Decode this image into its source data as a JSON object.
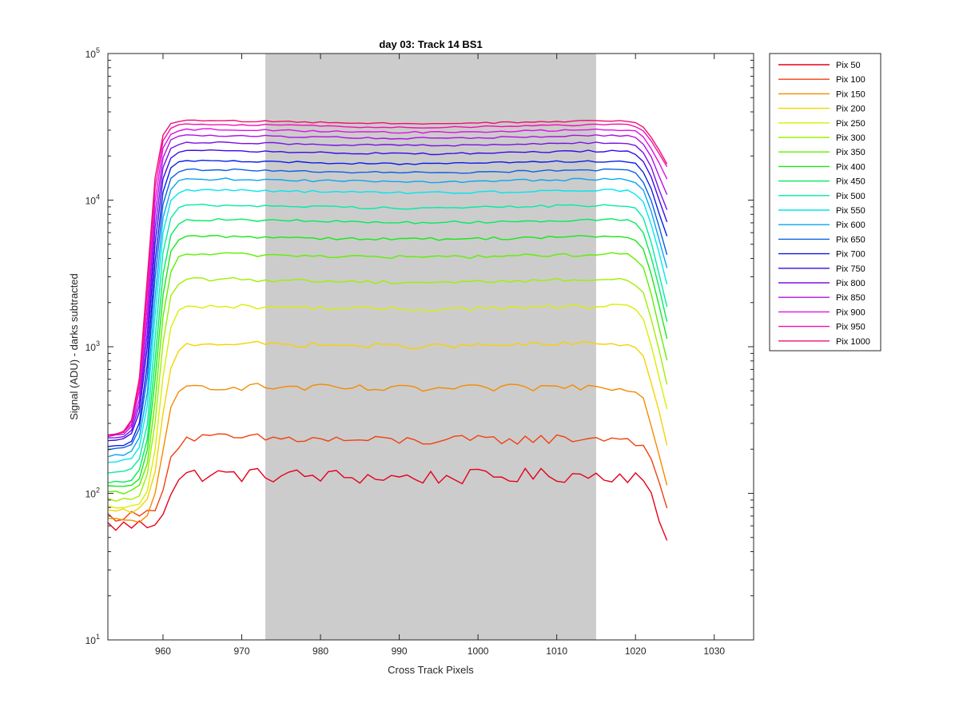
{
  "chart_data": {
    "type": "line",
    "title": "day 03: Track 14  BS1",
    "xlabel": "Cross Track Pixels",
    "ylabel": "Signal (ADU) - darks subtracted",
    "xlim": [
      953,
      1035
    ],
    "ylim": [
      10,
      100000
    ],
    "yscale": "log",
    "grid": false,
    "legend_position": "outside-right",
    "x_ticks": [
      960,
      970,
      980,
      990,
      1000,
      1010,
      1020,
      1030
    ],
    "y_ticks": [
      {
        "value": 10,
        "base": "10",
        "exp": "1"
      },
      {
        "value": 100,
        "base": "10",
        "exp": "2"
      },
      {
        "value": 1000,
        "base": "10",
        "exp": "3"
      },
      {
        "value": 10000,
        "base": "10",
        "exp": "4"
      },
      {
        "value": 100000,
        "base": "10",
        "exp": "5"
      }
    ],
    "shaded_region": {
      "x": [
        973,
        1015
      ],
      "color": "#cccccc"
    },
    "x": [
      953,
      954,
      955,
      956,
      957,
      958,
      959,
      960,
      961,
      962,
      963,
      964,
      965,
      966,
      967,
      968,
      969,
      970,
      971,
      972,
      973,
      974,
      975,
      976,
      977,
      978,
      979,
      980,
      981,
      982,
      983,
      984,
      985,
      986,
      987,
      988,
      989,
      990,
      991,
      992,
      993,
      994,
      995,
      996,
      997,
      998,
      999,
      1000,
      1001,
      1002,
      1003,
      1004,
      1005,
      1006,
      1007,
      1008,
      1009,
      1010,
      1011,
      1012,
      1013,
      1014,
      1015,
      1016,
      1017,
      1018,
      1019,
      1020,
      1021,
      1022,
      1023,
      1024
    ],
    "series": [
      {
        "name": "Pix 50",
        "color": "#e6001a",
        "start": 60,
        "rise_mid": 960.5,
        "plateau": 135,
        "end": 48,
        "jitter": 0.12
      },
      {
        "name": "Pix 100",
        "color": "#f24010",
        "start": 70,
        "rise_mid": 960.3,
        "plateau": 240,
        "end": 80,
        "jitter": 0.08
      },
      {
        "name": "Pix 150",
        "color": "#f58a00",
        "start": 65,
        "rise_mid": 960.0,
        "plateau": 540,
        "end": 115,
        "jitter": 0.06
      },
      {
        "name": "Pix 200",
        "color": "#f5d200",
        "start": 75,
        "rise_mid": 959.8,
        "plateau": 1060,
        "end": 215,
        "jitter": 0.04
      },
      {
        "name": "Pix 250",
        "color": "#d7f000",
        "start": 80,
        "rise_mid": 959.6,
        "plateau": 1900,
        "end": 380,
        "jitter": 0.035
      },
      {
        "name": "Pix 300",
        "color": "#9ef000",
        "start": 90,
        "rise_mid": 959.4,
        "plateau": 2900,
        "end": 560,
        "jitter": 0.03
      },
      {
        "name": "Pix 350",
        "color": "#5ef000",
        "start": 100,
        "rise_mid": 959.3,
        "plateau": 4300,
        "end": 820,
        "jitter": 0.03
      },
      {
        "name": "Pix 400",
        "color": "#18e818",
        "start": 110,
        "rise_mid": 959.2,
        "plateau": 5700,
        "end": 1150,
        "jitter": 0.025
      },
      {
        "name": "Pix 450",
        "color": "#00ec5e",
        "start": 120,
        "rise_mid": 959.1,
        "plateau": 7400,
        "end": 1500,
        "jitter": 0.02
      },
      {
        "name": "Pix 500",
        "color": "#00eca6",
        "start": 140,
        "rise_mid": 959.0,
        "plateau": 9300,
        "end": 1900,
        "jitter": 0.02
      },
      {
        "name": "Pix 550",
        "color": "#00e6ee",
        "start": 165,
        "rise_mid": 958.9,
        "plateau": 11800,
        "end": 2700,
        "jitter": 0.018
      },
      {
        "name": "Pix 600",
        "color": "#0aa6f0",
        "start": 180,
        "rise_mid": 958.8,
        "plateau": 14000,
        "end": 3500,
        "jitter": 0.018
      },
      {
        "name": "Pix 650",
        "color": "#0a60e6",
        "start": 200,
        "rise_mid": 958.7,
        "plateau": 16200,
        "end": 4300,
        "jitter": 0.016
      },
      {
        "name": "Pix 700",
        "color": "#0a1ee6",
        "start": 210,
        "rise_mid": 958.6,
        "plateau": 18600,
        "end": 5600,
        "jitter": 0.015
      },
      {
        "name": "Pix 750",
        "color": "#3a0ae6",
        "start": 230,
        "rise_mid": 958.5,
        "plateau": 21800,
        "end": 7000,
        "jitter": 0.015
      },
      {
        "name": "Pix 800",
        "color": "#7a10e6",
        "start": 240,
        "rise_mid": 958.4,
        "plateau": 24800,
        "end": 8500,
        "jitter": 0.014
      },
      {
        "name": "Pix 850",
        "color": "#b010e6",
        "start": 245,
        "rise_mid": 958.3,
        "plateau": 27800,
        "end": 10800,
        "jitter": 0.014
      },
      {
        "name": "Pix 900",
        "color": "#e010e6",
        "start": 250,
        "rise_mid": 958.2,
        "plateau": 30500,
        "end": 13800,
        "jitter": 0.013
      },
      {
        "name": "Pix 950",
        "color": "#f010b0",
        "start": 250,
        "rise_mid": 958.1,
        "plateau": 33000,
        "end": 16800,
        "jitter": 0.013
      },
      {
        "name": "Pix 1000",
        "color": "#f0106e",
        "start": 250,
        "rise_mid": 958.0,
        "plateau": 35000,
        "end": 17500,
        "jitter": 0.012
      }
    ]
  }
}
